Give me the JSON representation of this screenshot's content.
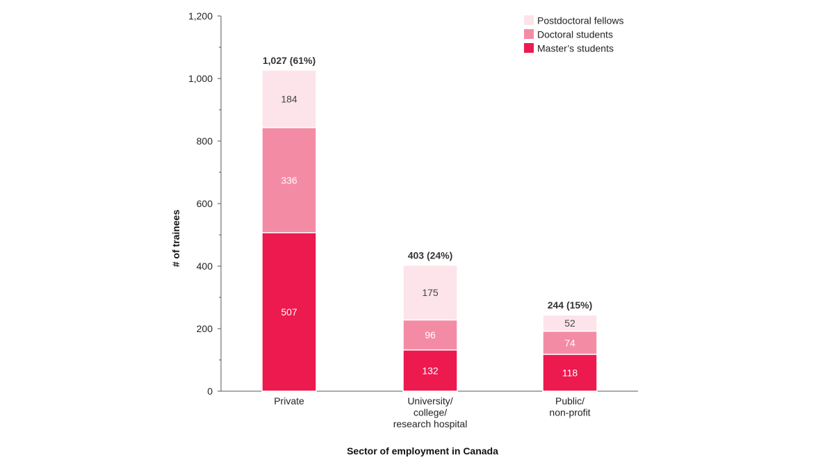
{
  "chart_data": {
    "type": "bar",
    "stacked": true,
    "title": "",
    "xlabel": "Sector of employment in Canada",
    "ylabel": "# of trainees",
    "ylim": [
      0,
      1200
    ],
    "yticks": [
      0,
      200,
      400,
      600,
      800,
      1000,
      1200
    ],
    "ytick_labels": [
      "0",
      "200",
      "400",
      "600",
      "800",
      "1,000",
      "1,200"
    ],
    "categories": [
      [
        "Private"
      ],
      [
        "University/",
        "college/",
        "research hospital"
      ],
      [
        "Public/",
        "non-profit"
      ]
    ],
    "series": [
      {
        "name": "Master’s students",
        "color": "#ec1a4f",
        "text_color": "#ffffff",
        "values": [
          507,
          132,
          118
        ]
      },
      {
        "name": "Doctoral students",
        "color": "#f48ba5",
        "text_color": "#ffffff",
        "values": [
          336,
          96,
          74
        ]
      },
      {
        "name": "Postdoctoral fellows",
        "color": "#fde4ea",
        "text_color": "#444444",
        "values": [
          184,
          175,
          52
        ]
      }
    ],
    "totals": [
      "1,027 (61%)",
      "403 (24%)",
      "244 (15%)"
    ],
    "legend": {
      "position": "top-right",
      "order": [
        "Postdoctoral fellows",
        "Doctoral students",
        "Master’s students"
      ]
    },
    "grid": false
  }
}
